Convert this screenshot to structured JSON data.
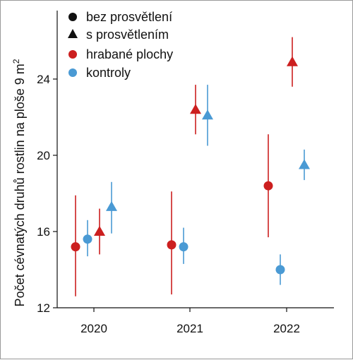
{
  "chart_data": {
    "type": "scatter",
    "ylabel": "Počet cévnatých druhů rostlin na ploše 9 m",
    "ylabel_sup": "2",
    "categories": [
      "2020",
      "2021",
      "2022"
    ],
    "yticks": [
      "12",
      "16",
      "20",
      "24"
    ],
    "ylim": [
      12,
      26.6
    ],
    "grid": false,
    "legend": {
      "placement": "top-left",
      "entries": [
        {
          "label": "bez prosvětlení",
          "marker": "circle",
          "color": "#111111"
        },
        {
          "label": "s prosvětlením",
          "marker": "triangle",
          "color": "#111111"
        },
        {
          "label": "hrabané plochy",
          "marker": "circle",
          "color": "#cc1f1f"
        },
        {
          "label": "kontroly",
          "marker": "circle",
          "color": "#4a9ad4"
        }
      ]
    },
    "colors": {
      "hrabane": "#cc1f1f",
      "kontroly": "#4a9ad4"
    },
    "points": [
      {
        "year": "2020",
        "group": "hrabane",
        "light": "bez",
        "y": 15.2,
        "lo": 12.6,
        "hi": 17.9
      },
      {
        "year": "2020",
        "group": "kontroly",
        "light": "bez",
        "y": 15.6,
        "lo": 14.7,
        "hi": 16.6
      },
      {
        "year": "2020",
        "group": "hrabane",
        "light": "s",
        "y": 16.0,
        "lo": 14.8,
        "hi": 17.2
      },
      {
        "year": "2020",
        "group": "kontroly",
        "light": "s",
        "y": 17.3,
        "lo": 15.9,
        "hi": 18.6
      },
      {
        "year": "2021",
        "group": "hrabane",
        "light": "bez",
        "y": 15.3,
        "lo": 12.7,
        "hi": 18.1
      },
      {
        "year": "2021",
        "group": "kontroly",
        "light": "bez",
        "y": 15.2,
        "lo": 14.3,
        "hi": 16.2
      },
      {
        "year": "2021",
        "group": "hrabane",
        "light": "s",
        "y": 22.4,
        "lo": 21.1,
        "hi": 23.7
      },
      {
        "year": "2021",
        "group": "kontroly",
        "light": "s",
        "y": 22.1,
        "lo": 20.5,
        "hi": 23.7
      },
      {
        "year": "2022",
        "group": "hrabane",
        "light": "bez",
        "y": 18.4,
        "lo": 15.7,
        "hi": 21.1
      },
      {
        "year": "2022",
        "group": "kontroly",
        "light": "bez",
        "y": 14.0,
        "lo": 13.2,
        "hi": 14.8
      },
      {
        "year": "2022",
        "group": "hrabane",
        "light": "s",
        "y": 24.9,
        "lo": 23.6,
        "hi": 26.2
      },
      {
        "year": "2022",
        "group": "kontroly",
        "light": "s",
        "y": 19.5,
        "lo": 18.7,
        "hi": 20.3
      }
    ]
  }
}
